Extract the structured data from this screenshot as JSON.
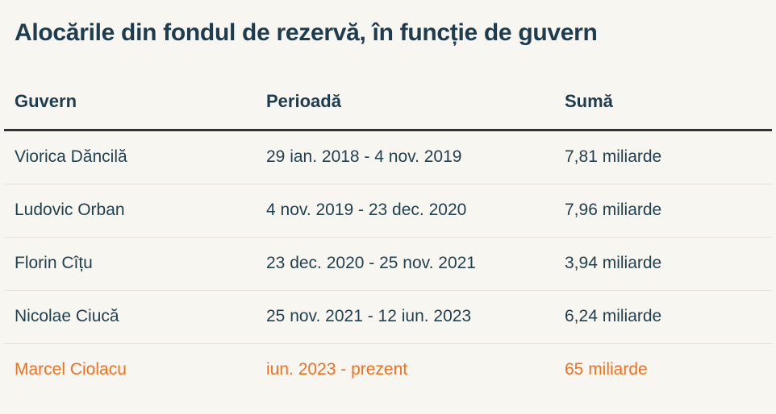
{
  "title": "Alocările din fondul de rezervă, în funcție de guvern",
  "colors": {
    "background": "#f8f6f1",
    "text_dark_teal": "#1d3c4e",
    "highlight_orange": "#f2701f",
    "header_rule_dark": "#333333",
    "row_separator_light": "#e6e3de"
  },
  "chart_data": {
    "type": "table",
    "title": "Alocările din fondul de rezervă, în funcție de guvern",
    "columns": [
      "Guvern",
      "Perioadă",
      "Sumă"
    ],
    "rows": [
      {
        "guvern": "Viorica Dăncilă",
        "perioada": "29 ian. 2018 - 4 nov. 2019",
        "suma": "7,81 miliarde"
      },
      {
        "guvern": "Ludovic Orban",
        "perioada": "4 nov. 2019 - 23 dec. 2020",
        "suma": "7,96 miliarde"
      },
      {
        "guvern": "Florin Cîțu",
        "perioada": "23 dec. 2020 - 25 nov. 2021",
        "suma": "3,94 miliarde"
      },
      {
        "guvern": "Nicolae Ciucă",
        "perioada": "25 nov. 2021 - 12 iun. 2023",
        "suma": "6,24 miliarde"
      },
      {
        "guvern": "Marcel Ciolacu",
        "perioada": "iun. 2023 - prezent",
        "suma": "65 miliarde"
      }
    ],
    "values_numeric_miliarde": [
      7.81,
      7.96,
      3.94,
      6.24,
      65
    ],
    "highlighted_row_index": 4,
    "highlight_color": "#f2701f",
    "layout": "header row with thick dark rule below, thin light separators between body rows, last row highlighted orange"
  }
}
